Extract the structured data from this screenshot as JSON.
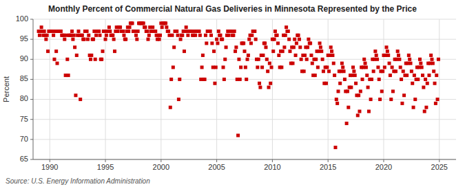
{
  "chart_data": {
    "type": "scatter",
    "title": "Monthly Percent of Commercial Natural Gas Deliveries in Minnesota Represented by the Price",
    "y_label": "Percent",
    "source": "Source: U.S. Energy Information Administration",
    "color": "#cc0000",
    "marker": "square",
    "grid": true,
    "xlim": [
      1988.5,
      2026.5
    ],
    "ylim": [
      65,
      100
    ],
    "xticks": [
      1990,
      1995,
      2000,
      2005,
      2010,
      2015,
      2020,
      2025
    ],
    "yticks": [
      65,
      70,
      75,
      80,
      85,
      90,
      95,
      100
    ],
    "x": [
      1989.0,
      1989.083,
      1989.167,
      1989.25,
      1989.333,
      1989.417,
      1989.5,
      1989.583,
      1989.667,
      1989.75,
      1989.833,
      1989.917,
      1990.0,
      1990.083,
      1990.167,
      1990.25,
      1990.333,
      1990.417,
      1990.5,
      1990.583,
      1990.667,
      1990.75,
      1990.833,
      1990.917,
      1991.0,
      1991.083,
      1991.167,
      1991.25,
      1991.333,
      1991.417,
      1991.5,
      1991.583,
      1991.667,
      1991.75,
      1991.833,
      1991.917,
      1992.0,
      1992.083,
      1992.167,
      1992.25,
      1992.333,
      1992.417,
      1992.5,
      1992.583,
      1992.667,
      1992.75,
      1992.833,
      1992.917,
      1993.0,
      1993.083,
      1993.167,
      1993.25,
      1993.333,
      1993.417,
      1993.5,
      1993.583,
      1993.667,
      1993.75,
      1993.833,
      1993.917,
      1994.0,
      1994.083,
      1994.167,
      1994.25,
      1994.333,
      1994.417,
      1994.5,
      1994.583,
      1994.667,
      1994.75,
      1994.833,
      1994.917,
      1995.0,
      1995.083,
      1995.167,
      1995.25,
      1995.333,
      1995.417,
      1995.5,
      1995.583,
      1995.667,
      1995.75,
      1995.833,
      1995.917,
      1996.0,
      1996.083,
      1996.167,
      1996.25,
      1996.333,
      1996.417,
      1996.5,
      1996.583,
      1996.667,
      1996.75,
      1996.833,
      1996.917,
      1997.0,
      1997.083,
      1997.167,
      1997.25,
      1997.333,
      1997.417,
      1997.5,
      1997.583,
      1997.667,
      1997.75,
      1997.833,
      1997.917,
      1998.0,
      1998.083,
      1998.167,
      1998.25,
      1998.333,
      1998.417,
      1998.5,
      1998.583,
      1998.667,
      1998.75,
      1998.833,
      1998.917,
      1999.0,
      1999.083,
      1999.167,
      1999.25,
      1999.333,
      1999.417,
      1999.5,
      1999.583,
      1999.667,
      1999.75,
      1999.833,
      1999.917,
      2000.0,
      2000.083,
      2000.167,
      2000.25,
      2000.333,
      2000.417,
      2000.5,
      2000.583,
      2000.667,
      2000.75,
      2000.833,
      2000.917,
      2001.0,
      2001.083,
      2001.167,
      2001.25,
      2001.333,
      2001.417,
      2001.5,
      2001.583,
      2001.667,
      2001.75,
      2001.833,
      2001.917,
      2002.0,
      2002.083,
      2002.167,
      2002.25,
      2002.333,
      2002.417,
      2002.5,
      2002.583,
      2002.667,
      2002.75,
      2002.833,
      2002.917,
      2003.0,
      2003.083,
      2003.167,
      2003.25,
      2003.333,
      2003.417,
      2003.5,
      2003.583,
      2003.667,
      2003.75,
      2003.833,
      2003.917,
      2004.0,
      2004.083,
      2004.167,
      2004.25,
      2004.333,
      2004.417,
      2004.5,
      2004.583,
      2004.667,
      2004.75,
      2004.833,
      2004.917,
      2005.0,
      2005.083,
      2005.167,
      2005.25,
      2005.333,
      2005.417,
      2005.5,
      2005.583,
      2005.667,
      2005.75,
      2005.833,
      2005.917,
      2006.0,
      2006.083,
      2006.167,
      2006.25,
      2006.333,
      2006.417,
      2006.5,
      2006.583,
      2006.667,
      2006.75,
      2006.833,
      2006.917,
      2007.0,
      2007.083,
      2007.167,
      2007.25,
      2007.333,
      2007.417,
      2007.5,
      2007.583,
      2007.667,
      2007.75,
      2007.833,
      2007.917,
      2008.0,
      2008.083,
      2008.167,
      2008.25,
      2008.333,
      2008.417,
      2008.5,
      2008.583,
      2008.667,
      2008.75,
      2008.833,
      2008.917,
      2009.0,
      2009.083,
      2009.167,
      2009.25,
      2009.333,
      2009.417,
      2009.5,
      2009.583,
      2009.667,
      2009.75,
      2009.833,
      2009.917,
      2010.0,
      2010.083,
      2010.167,
      2010.25,
      2010.333,
      2010.417,
      2010.5,
      2010.583,
      2010.667,
      2010.75,
      2010.833,
      2010.917,
      2011.0,
      2011.083,
      2011.167,
      2011.25,
      2011.333,
      2011.417,
      2011.5,
      2011.583,
      2011.667,
      2011.75,
      2011.833,
      2011.917,
      2012.0,
      2012.083,
      2012.167,
      2012.25,
      2012.333,
      2012.417,
      2012.5,
      2012.583,
      2012.667,
      2012.75,
      2012.833,
      2012.917,
      2013.0,
      2013.083,
      2013.167,
      2013.25,
      2013.333,
      2013.417,
      2013.5,
      2013.583,
      2013.667,
      2013.75,
      2013.833,
      2013.917,
      2014.0,
      2014.083,
      2014.167,
      2014.25,
      2014.333,
      2014.417,
      2014.5,
      2014.583,
      2014.667,
      2014.75,
      2014.833,
      2014.917,
      2015.0,
      2015.083,
      2015.167,
      2015.25,
      2015.333,
      2015.417,
      2015.5,
      2015.583,
      2015.667,
      2015.75,
      2015.833,
      2015.917,
      2016.0,
      2016.083,
      2016.167,
      2016.25,
      2016.333,
      2016.417,
      2016.5,
      2016.583,
      2016.667,
      2016.75,
      2016.833,
      2016.917,
      2017.0,
      2017.083,
      2017.167,
      2017.25,
      2017.333,
      2017.417,
      2017.5,
      2017.583,
      2017.667,
      2017.75,
      2017.833,
      2017.917,
      2018.0,
      2018.083,
      2018.167,
      2018.25,
      2018.333,
      2018.417,
      2018.5,
      2018.583,
      2018.667,
      2018.75,
      2018.833,
      2018.917,
      2019.0,
      2019.083,
      2019.167,
      2019.25,
      2019.333,
      2019.417,
      2019.5,
      2019.583,
      2019.667,
      2019.75,
      2019.833,
      2019.917,
      2020.0,
      2020.083,
      2020.167,
      2020.25,
      2020.333,
      2020.417,
      2020.5,
      2020.583,
      2020.667,
      2020.75,
      2020.833,
      2020.917,
      2021.0,
      2021.083,
      2021.167,
      2021.25,
      2021.333,
      2021.417,
      2021.5,
      2021.583,
      2021.667,
      2021.75,
      2021.833,
      2021.917,
      2022.0,
      2022.083,
      2022.167,
      2022.25,
      2022.333,
      2022.417,
      2022.5,
      2022.583,
      2022.667,
      2022.75,
      2022.833,
      2022.917,
      2023.0,
      2023.083,
      2023.167,
      2023.25,
      2023.333,
      2023.417,
      2023.5,
      2023.583,
      2023.667,
      2023.75,
      2023.833,
      2023.917,
      2024.0,
      2024.083,
      2024.167,
      2024.25,
      2024.333,
      2024.417,
      2024.5,
      2024.583,
      2024.667,
      2024.75,
      2024.833,
      2024.917
    ],
    "values": [
      97,
      96,
      97,
      98,
      97,
      96,
      97,
      96,
      95,
      96,
      92,
      97,
      97,
      97,
      97,
      97,
      96,
      90,
      97,
      92,
      89,
      97,
      97,
      97,
      97,
      96,
      96,
      96,
      95,
      86,
      96,
      90,
      86,
      96,
      96,
      96,
      97,
      95,
      96,
      93,
      81,
      91,
      96,
      97,
      96,
      80,
      96,
      96,
      95,
      95,
      97,
      97,
      97,
      95,
      96,
      91,
      90,
      91,
      95,
      95,
      97,
      90,
      96,
      97,
      97,
      97,
      96,
      90,
      90,
      92,
      97,
      97,
      95,
      96,
      97,
      97,
      98,
      97,
      96,
      96,
      96,
      95,
      92,
      97,
      98,
      97,
      98,
      98,
      98,
      97,
      97,
      97,
      96,
      95,
      95,
      97,
      98,
      97,
      98,
      99,
      99,
      99,
      97,
      97,
      97,
      96,
      95,
      97,
      99,
      99,
      99,
      99,
      99,
      99,
      98,
      98,
      97,
      97,
      95,
      96,
      98,
      97,
      97,
      98,
      97,
      97,
      97,
      96,
      95,
      96,
      95,
      96,
      99,
      98,
      99,
      99,
      99,
      99,
      98,
      97,
      97,
      96,
      78,
      85,
      96,
      88,
      93,
      97,
      97,
      97,
      96,
      80,
      85,
      95,
      96,
      96,
      97,
      92,
      97,
      98,
      97,
      96,
      97,
      97,
      97,
      97,
      96,
      96,
      97,
      96,
      97,
      97,
      97,
      97,
      96,
      85,
      88,
      91,
      85,
      85,
      96,
      94,
      97,
      97,
      97,
      97,
      96,
      94,
      88,
      92,
      84,
      88,
      95,
      94,
      97,
      96,
      96,
      95,
      95,
      88,
      85,
      90,
      93,
      96,
      97,
      96,
      97,
      97,
      97,
      96,
      96,
      97,
      92,
      93,
      85,
      71,
      90,
      85,
      88,
      94,
      94,
      94,
      92,
      88,
      85,
      90,
      91,
      95,
      96,
      94,
      96,
      97,
      97,
      97,
      95,
      90,
      88,
      90,
      84,
      83,
      91,
      88,
      91,
      94,
      94,
      93,
      90,
      87,
      83,
      89,
      84,
      88,
      95,
      92,
      95,
      97,
      96,
      96,
      94,
      91,
      88,
      92,
      88,
      92,
      96,
      93,
      96,
      98,
      97,
      97,
      95,
      92,
      89,
      93,
      89,
      93,
      95,
      91,
      94,
      96,
      96,
      95,
      93,
      90,
      87,
      91,
      87,
      91,
      93,
      90,
      93,
      95,
      94,
      94,
      91,
      89,
      86,
      90,
      86,
      90,
      92,
      88,
      92,
      94,
      93,
      92,
      90,
      87,
      84,
      88,
      84,
      88,
      91,
      87,
      91,
      93,
      92,
      91,
      89,
      86,
      68,
      80,
      79,
      82,
      87,
      84,
      87,
      89,
      88,
      87,
      85,
      82,
      74,
      82,
      78,
      83,
      86,
      83,
      86,
      88,
      87,
      86,
      84,
      81,
      76,
      81,
      77,
      82,
      88,
      85,
      88,
      90,
      89,
      88,
      86,
      83,
      77,
      85,
      80,
      85,
      90,
      87,
      90,
      92,
      91,
      90,
      88,
      85,
      80,
      87,
      82,
      87,
      91,
      88,
      91,
      93,
      92,
      91,
      89,
      86,
      80,
      88,
      82,
      87,
      90,
      87,
      90,
      92,
      91,
      90,
      88,
      85,
      79,
      87,
      81,
      86,
      89,
      86,
      89,
      91,
      90,
      89,
      87,
      84,
      78,
      86,
      80,
      85,
      88,
      85,
      88,
      90,
      89,
      88,
      86,
      83,
      77,
      85,
      78,
      84,
      89,
      86,
      89,
      91,
      90,
      89,
      87,
      84,
      79,
      86,
      80,
      90
    ]
  }
}
